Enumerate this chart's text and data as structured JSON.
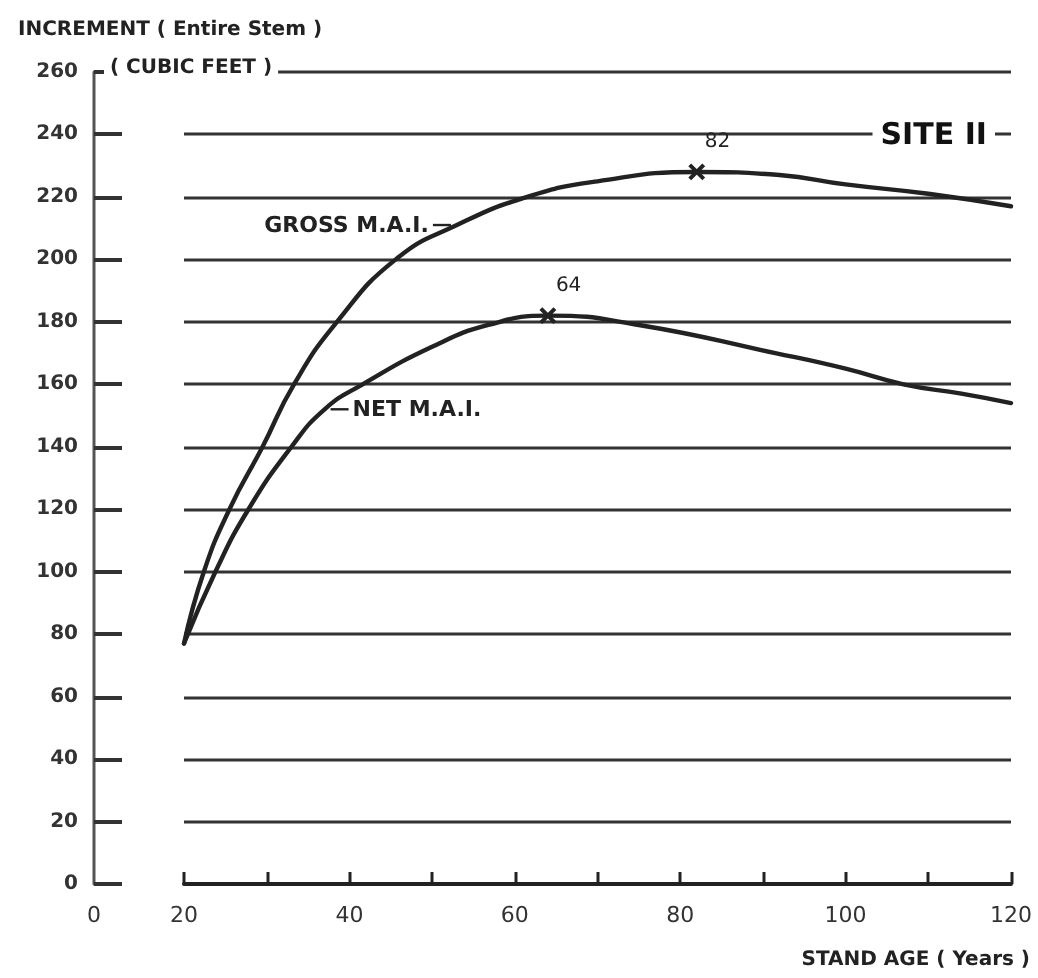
{
  "chart_data": {
    "type": "line",
    "xlabel": "STAND AGE ( Years )",
    "ylabel": "INCREMENT ( Entire Stem )\n( CUBIC FEET )",
    "xlim": [
      20,
      120
    ],
    "xticks": [
      20,
      {
        "value": 30,
        "label": null
      },
      40,
      {
        "value": 50,
        "label": null
      },
      60,
      {
        "value": 70,
        "label": null
      },
      80,
      {
        "value": 90,
        "label": null
      },
      100,
      {
        "value": 110,
        "label": null
      },
      120
    ],
    "ylim": [
      0,
      260
    ],
    "yticks": [
      0,
      20,
      40,
      60,
      80,
      100,
      120,
      140,
      160,
      180,
      200,
      220,
      240,
      260
    ],
    "grid": "y",
    "marker": "none",
    "line_style": "solid",
    "series": [
      {
        "name": "GROSS M.A.I.",
        "color": "#222222",
        "x": [
          20,
          22.4,
          25.5,
          29.5,
          33.3,
          38.5,
          45.6,
          53,
          61.5,
          70,
          82,
          92,
          100,
          110,
          120
        ],
        "values": [
          77,
          100,
          120,
          140,
          160,
          180,
          200,
          211,
          220,
          225,
          228,
          227,
          224,
          221,
          217
        ]
      },
      {
        "name": "NET M.A.I.",
        "color": "#222222",
        "x": [
          20,
          23.8,
          27.8,
          33,
          37,
          41.6,
          50,
          56.8,
          64,
          75,
          91.5,
          100,
          107,
          114,
          120
        ],
        "values": [
          77,
          100,
          120,
          140,
          152,
          160,
          172,
          179,
          182,
          179,
          170,
          165,
          160,
          157,
          154
        ]
      }
    ],
    "annotations": [
      "SITE II",
      "0",
      {
        "text": "82",
        "x": 82,
        "y": 228
      },
      {
        "text": "64",
        "x": 64,
        "y": 182
      }
    ]
  }
}
